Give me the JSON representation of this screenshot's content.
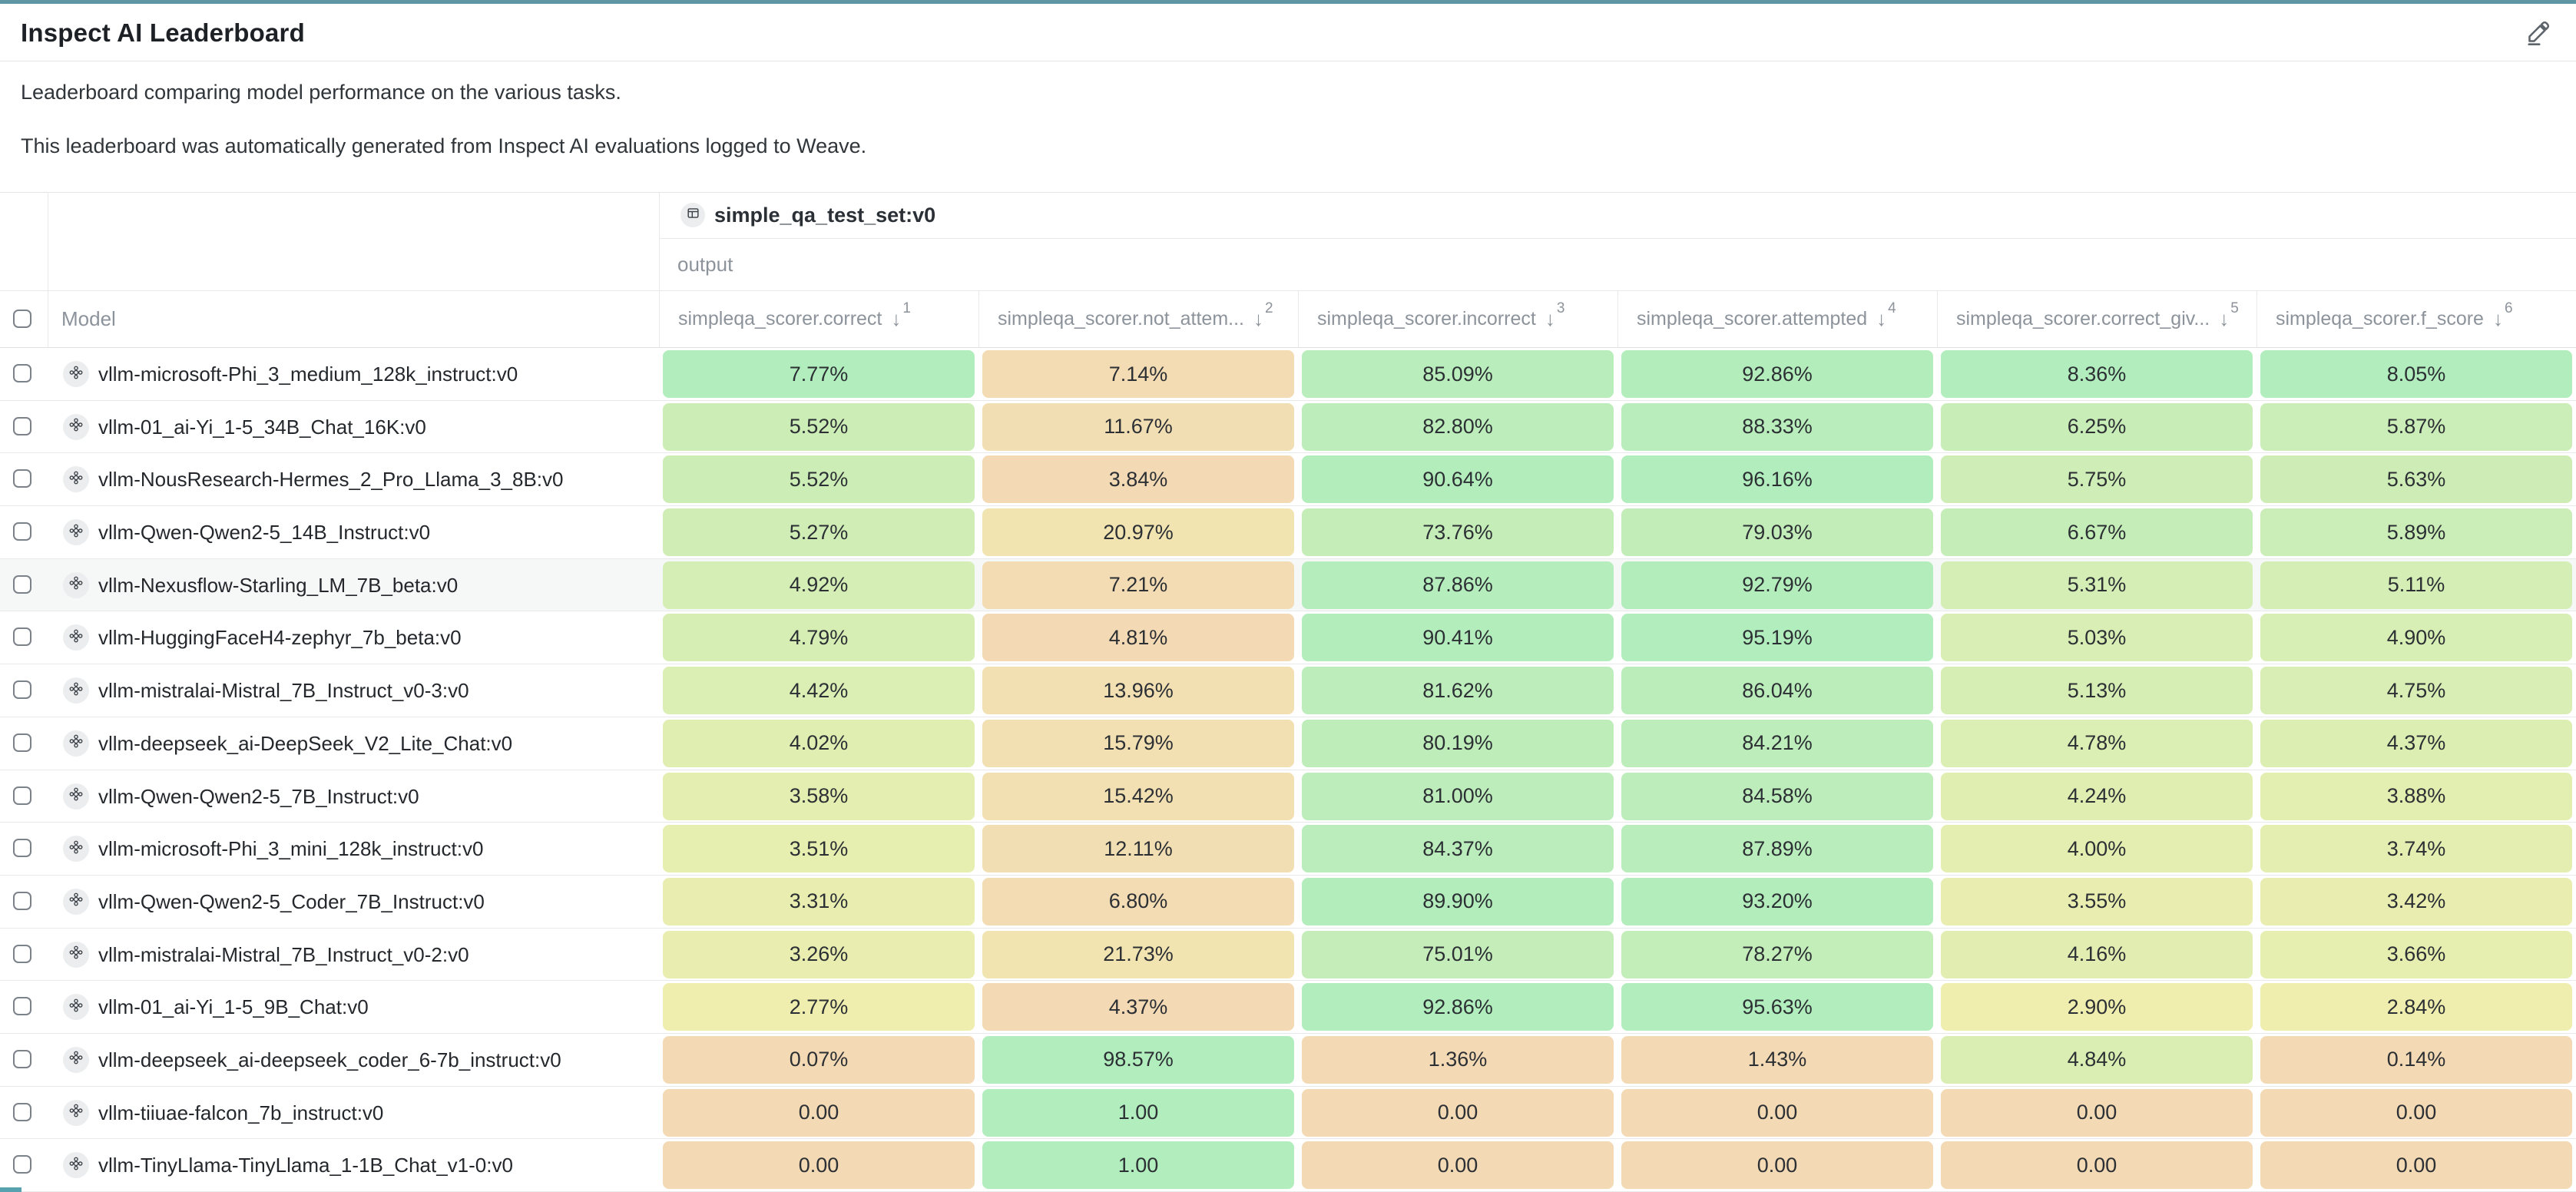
{
  "page": {
    "title": "Inspect AI Leaderboard",
    "description_lines": [
      "Leaderboard comparing model performance on the various tasks.",
      "This leaderboard was automatically generated from Inspect AI evaluations logged to Weave."
    ],
    "accent_color": "#5e96a3"
  },
  "icons": {
    "sort_desc": "↓"
  },
  "heatmap": {
    "low": "#f3d9b4",
    "mid": "#f0eeae",
    "high": "#b1edbd",
    "mid_point": 0.35
  },
  "table": {
    "group_header": {
      "label": "simple_qa_test_set:v0"
    },
    "subgroup_label": "output",
    "model_column_label": "Model",
    "columns": [
      {
        "label": "simpleqa_scorer.correct",
        "sort_order": "1"
      },
      {
        "label": "simpleqa_scorer.not_attem...",
        "sort_order": "2"
      },
      {
        "label": "simpleqa_scorer.incorrect",
        "sort_order": "3"
      },
      {
        "label": "simpleqa_scorer.attempted",
        "sort_order": "4"
      },
      {
        "label": "simpleqa_scorer.correct_giv...",
        "sort_order": "5"
      },
      {
        "label": "simpleqa_scorer.f_score",
        "sort_order": "6"
      }
    ],
    "rows": [
      {
        "model": "vllm-microsoft-Phi_3_medium_128k_instruct:v0",
        "highlighted": false,
        "values": [
          "7.77%",
          "7.14%",
          "85.09%",
          "92.86%",
          "8.36%",
          "8.05%"
        ]
      },
      {
        "model": "vllm-01_ai-Yi_1-5_34B_Chat_16K:v0",
        "highlighted": false,
        "values": [
          "5.52%",
          "11.67%",
          "82.80%",
          "88.33%",
          "6.25%",
          "5.87%"
        ]
      },
      {
        "model": "vllm-NousResearch-Hermes_2_Pro_Llama_3_8B:v0",
        "highlighted": false,
        "values": [
          "5.52%",
          "3.84%",
          "90.64%",
          "96.16%",
          "5.75%",
          "5.63%"
        ]
      },
      {
        "model": "vllm-Qwen-Qwen2-5_14B_Instruct:v0",
        "highlighted": false,
        "values": [
          "5.27%",
          "20.97%",
          "73.76%",
          "79.03%",
          "6.67%",
          "5.89%"
        ]
      },
      {
        "model": "vllm-Nexusflow-Starling_LM_7B_beta:v0",
        "highlighted": true,
        "values": [
          "4.92%",
          "7.21%",
          "87.86%",
          "92.79%",
          "5.31%",
          "5.11%"
        ]
      },
      {
        "model": "vllm-HuggingFaceH4-zephyr_7b_beta:v0",
        "highlighted": false,
        "values": [
          "4.79%",
          "4.81%",
          "90.41%",
          "95.19%",
          "5.03%",
          "4.90%"
        ]
      },
      {
        "model": "vllm-mistralai-Mistral_7B_Instruct_v0-3:v0",
        "highlighted": false,
        "values": [
          "4.42%",
          "13.96%",
          "81.62%",
          "86.04%",
          "5.13%",
          "4.75%"
        ]
      },
      {
        "model": "vllm-deepseek_ai-DeepSeek_V2_Lite_Chat:v0",
        "highlighted": false,
        "values": [
          "4.02%",
          "15.79%",
          "80.19%",
          "84.21%",
          "4.78%",
          "4.37%"
        ]
      },
      {
        "model": "vllm-Qwen-Qwen2-5_7B_Instruct:v0",
        "highlighted": false,
        "values": [
          "3.58%",
          "15.42%",
          "81.00%",
          "84.58%",
          "4.24%",
          "3.88%"
        ]
      },
      {
        "model": "vllm-microsoft-Phi_3_mini_128k_instruct:v0",
        "highlighted": false,
        "values": [
          "3.51%",
          "12.11%",
          "84.37%",
          "87.89%",
          "4.00%",
          "3.74%"
        ]
      },
      {
        "model": "vllm-Qwen-Qwen2-5_Coder_7B_Instruct:v0",
        "highlighted": false,
        "values": [
          "3.31%",
          "6.80%",
          "89.90%",
          "93.20%",
          "3.55%",
          "3.42%"
        ]
      },
      {
        "model": "vllm-mistralai-Mistral_7B_Instruct_v0-2:v0",
        "highlighted": false,
        "values": [
          "3.26%",
          "21.73%",
          "75.01%",
          "78.27%",
          "4.16%",
          "3.66%"
        ]
      },
      {
        "model": "vllm-01_ai-Yi_1-5_9B_Chat:v0",
        "highlighted": false,
        "values": [
          "2.77%",
          "4.37%",
          "92.86%",
          "95.63%",
          "2.90%",
          "2.84%"
        ]
      },
      {
        "model": "vllm-deepseek_ai-deepseek_coder_6-7b_instruct:v0",
        "highlighted": false,
        "values": [
          "0.07%",
          "98.57%",
          "1.36%",
          "1.43%",
          "4.84%",
          "0.14%"
        ]
      },
      {
        "model": "vllm-tiiuae-falcon_7b_instruct:v0",
        "highlighted": false,
        "values": [
          "0.00",
          "1.00",
          "0.00",
          "0.00",
          "0.00",
          "0.00"
        ]
      },
      {
        "model": "vllm-TinyLlama-TinyLlama_1-1B_Chat_v1-0:v0",
        "highlighted": false,
        "values": [
          "0.00",
          "1.00",
          "0.00",
          "0.00",
          "0.00",
          "0.00"
        ]
      }
    ]
  }
}
